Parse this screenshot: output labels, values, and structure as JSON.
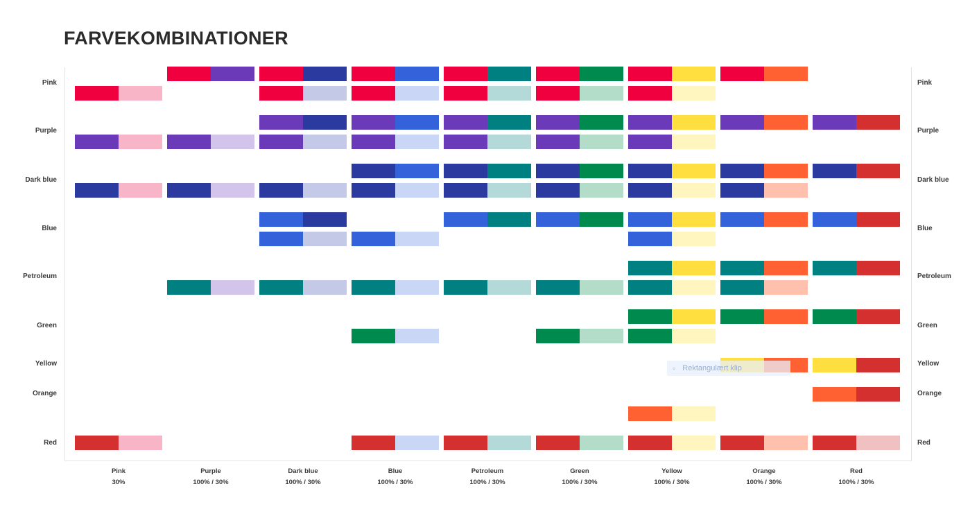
{
  "title": "FARVEKOMBINATIONER",
  "palette": {
    "pink": "#f0003f",
    "purple": "#6b3ab8",
    "darkblue": "#2b3a9e",
    "blue": "#3462db",
    "petroleum": "#008080",
    "green": "#008a4e",
    "yellow": "#ffdf3f",
    "orange": "#ff6133",
    "red": "#d3302f",
    "pink30": "#f8b5c8",
    "purple30": "#d3c4eb",
    "darkblue30": "#c4c9e8",
    "blue30": "#cad6f5",
    "petroleum30": "#b3d9d9",
    "green30": "#b3dcc9",
    "yellow30": "#fff5bf",
    "orange30": "#ffc1ad",
    "red30": "#f1c1c1"
  },
  "row_labels": [
    "Pink",
    "Purple",
    "Dark blue",
    "Blue",
    "Petroleum",
    "Green",
    "Yellow",
    "Orange",
    "Red"
  ],
  "columns": [
    {
      "name": "Pink",
      "sub": "30%"
    },
    {
      "name": "Purple",
      "sub": "100% / 30%"
    },
    {
      "name": "Dark blue",
      "sub": "100% / 30%"
    },
    {
      "name": "Blue",
      "sub": "100% / 30%"
    },
    {
      "name": "Petroleum",
      "sub": "100% / 30%"
    },
    {
      "name": "Green",
      "sub": "100% / 30%"
    },
    {
      "name": "Yellow",
      "sub": "100% / 30%"
    },
    {
      "name": "Orange",
      "sub": "100% / 30%"
    },
    {
      "name": "Red",
      "sub": "100% / 30%"
    }
  ],
  "swatch_rows": [
    {
      "row": "Pink",
      "level": "top",
      "cells": [
        {
          "col": 1,
          "colors": [
            "pink",
            "purple"
          ]
        },
        {
          "col": 2,
          "colors": [
            "pink",
            "darkblue"
          ]
        },
        {
          "col": 3,
          "colors": [
            "pink",
            "blue"
          ]
        },
        {
          "col": 4,
          "colors": [
            "pink",
            "petroleum"
          ]
        },
        {
          "col": 5,
          "colors": [
            "pink",
            "green"
          ]
        },
        {
          "col": 6,
          "colors": [
            "pink",
            "yellow"
          ]
        },
        {
          "col": 7,
          "colors": [
            "pink",
            "orange"
          ]
        }
      ]
    },
    {
      "row": "Pink",
      "level": "bottom",
      "cells": [
        {
          "col": 0,
          "colors": [
            "pink",
            "pink30"
          ]
        },
        {
          "col": 2,
          "colors": [
            "pink",
            "darkblue30"
          ]
        },
        {
          "col": 3,
          "colors": [
            "pink",
            "blue30"
          ]
        },
        {
          "col": 4,
          "colors": [
            "pink",
            "petroleum30"
          ]
        },
        {
          "col": 5,
          "colors": [
            "pink",
            "green30"
          ]
        },
        {
          "col": 6,
          "colors": [
            "pink",
            "yellow30"
          ]
        }
      ]
    },
    {
      "row": "Purple",
      "level": "top",
      "cells": [
        {
          "col": 2,
          "colors": [
            "purple",
            "darkblue"
          ]
        },
        {
          "col": 3,
          "colors": [
            "purple",
            "blue"
          ]
        },
        {
          "col": 4,
          "colors": [
            "purple",
            "petroleum"
          ]
        },
        {
          "col": 5,
          "colors": [
            "purple",
            "green"
          ]
        },
        {
          "col": 6,
          "colors": [
            "purple",
            "yellow"
          ]
        },
        {
          "col": 7,
          "colors": [
            "purple",
            "orange"
          ]
        },
        {
          "col": 8,
          "colors": [
            "purple",
            "red"
          ]
        }
      ]
    },
    {
      "row": "Purple",
      "level": "bottom",
      "cells": [
        {
          "col": 0,
          "colors": [
            "purple",
            "pink30"
          ]
        },
        {
          "col": 1,
          "colors": [
            "purple",
            "purple30"
          ]
        },
        {
          "col": 2,
          "colors": [
            "purple",
            "darkblue30"
          ]
        },
        {
          "col": 3,
          "colors": [
            "purple",
            "blue30"
          ]
        },
        {
          "col": 4,
          "colors": [
            "purple",
            "petroleum30"
          ]
        },
        {
          "col": 5,
          "colors": [
            "purple",
            "green30"
          ]
        },
        {
          "col": 6,
          "colors": [
            "purple",
            "yellow30"
          ]
        }
      ]
    },
    {
      "row": "Dark blue",
      "level": "top",
      "cells": [
        {
          "col": 3,
          "colors": [
            "darkblue",
            "blue"
          ]
        },
        {
          "col": 4,
          "colors": [
            "darkblue",
            "petroleum"
          ]
        },
        {
          "col": 5,
          "colors": [
            "darkblue",
            "green"
          ]
        },
        {
          "col": 6,
          "colors": [
            "darkblue",
            "yellow"
          ]
        },
        {
          "col": 7,
          "colors": [
            "darkblue",
            "orange"
          ]
        },
        {
          "col": 8,
          "colors": [
            "darkblue",
            "red"
          ]
        }
      ]
    },
    {
      "row": "Dark blue",
      "level": "bottom",
      "cells": [
        {
          "col": 0,
          "colors": [
            "darkblue",
            "pink30"
          ]
        },
        {
          "col": 1,
          "colors": [
            "darkblue",
            "purple30"
          ]
        },
        {
          "col": 2,
          "colors": [
            "darkblue",
            "darkblue30"
          ]
        },
        {
          "col": 3,
          "colors": [
            "darkblue",
            "blue30"
          ]
        },
        {
          "col": 4,
          "colors": [
            "darkblue",
            "petroleum30"
          ]
        },
        {
          "col": 5,
          "colors": [
            "darkblue",
            "green30"
          ]
        },
        {
          "col": 6,
          "colors": [
            "darkblue",
            "yellow30"
          ]
        },
        {
          "col": 7,
          "colors": [
            "darkblue",
            "orange30"
          ]
        }
      ]
    },
    {
      "row": "Blue",
      "level": "top",
      "cells": [
        {
          "col": 2,
          "colors": [
            "blue",
            "darkblue"
          ]
        },
        {
          "col": 4,
          "colors": [
            "blue",
            "petroleum"
          ]
        },
        {
          "col": 5,
          "colors": [
            "blue",
            "green"
          ]
        },
        {
          "col": 6,
          "colors": [
            "blue",
            "yellow"
          ]
        },
        {
          "col": 7,
          "colors": [
            "blue",
            "orange"
          ]
        },
        {
          "col": 8,
          "colors": [
            "blue",
            "red"
          ]
        }
      ]
    },
    {
      "row": "Blue",
      "level": "bottom",
      "cells": [
        {
          "col": 2,
          "colors": [
            "blue",
            "darkblue30"
          ]
        },
        {
          "col": 3,
          "colors": [
            "blue",
            "blue30"
          ]
        },
        {
          "col": 6,
          "colors": [
            "blue",
            "yellow30"
          ]
        }
      ]
    },
    {
      "row": "Petroleum",
      "level": "top",
      "cells": [
        {
          "col": 6,
          "colors": [
            "petroleum",
            "yellow"
          ]
        },
        {
          "col": 7,
          "colors": [
            "petroleum",
            "orange"
          ]
        },
        {
          "col": 8,
          "colors": [
            "petroleum",
            "red"
          ]
        }
      ]
    },
    {
      "row": "Petroleum",
      "level": "bottom",
      "cells": [
        {
          "col": 1,
          "colors": [
            "petroleum",
            "purple30"
          ]
        },
        {
          "col": 2,
          "colors": [
            "petroleum",
            "darkblue30"
          ]
        },
        {
          "col": 3,
          "colors": [
            "petroleum",
            "blue30"
          ]
        },
        {
          "col": 4,
          "colors": [
            "petroleum",
            "petroleum30"
          ]
        },
        {
          "col": 5,
          "colors": [
            "petroleum",
            "green30"
          ]
        },
        {
          "col": 6,
          "colors": [
            "petroleum",
            "yellow30"
          ]
        },
        {
          "col": 7,
          "colors": [
            "petroleum",
            "orange30"
          ]
        }
      ]
    },
    {
      "row": "Green",
      "level": "top",
      "cells": [
        {
          "col": 6,
          "colors": [
            "green",
            "yellow"
          ]
        },
        {
          "col": 7,
          "colors": [
            "green",
            "orange"
          ]
        },
        {
          "col": 8,
          "colors": [
            "green",
            "red"
          ]
        }
      ]
    },
    {
      "row": "Green",
      "level": "bottom",
      "cells": [
        {
          "col": 3,
          "colors": [
            "green",
            "blue30"
          ]
        },
        {
          "col": 5,
          "colors": [
            "green",
            "green30"
          ]
        },
        {
          "col": 6,
          "colors": [
            "green",
            "yellow30"
          ]
        }
      ]
    },
    {
      "row": "Yellow",
      "level": "top",
      "cells": [
        {
          "col": 7,
          "colors": [
            "yellow",
            "orange"
          ]
        },
        {
          "col": 8,
          "colors": [
            "yellow",
            "red"
          ]
        }
      ]
    },
    {
      "row": "Orange",
      "level": "top",
      "cells": [
        {
          "col": 8,
          "colors": [
            "orange",
            "red"
          ]
        }
      ]
    },
    {
      "row": "Orange",
      "level": "bottom",
      "cells": [
        {
          "col": 6,
          "colors": [
            "orange",
            "yellow30"
          ]
        }
      ]
    },
    {
      "row": "Red",
      "level": "top",
      "cells": [
        {
          "col": 0,
          "colors": [
            "red",
            "pink30"
          ]
        },
        {
          "col": 3,
          "colors": [
            "red",
            "blue30"
          ]
        },
        {
          "col": 4,
          "colors": [
            "red",
            "petroleum30"
          ]
        },
        {
          "col": 5,
          "colors": [
            "red",
            "green30"
          ]
        },
        {
          "col": 6,
          "colors": [
            "red",
            "yellow30"
          ]
        },
        {
          "col": 7,
          "colors": [
            "red",
            "orange30"
          ]
        },
        {
          "col": 8,
          "colors": [
            "red",
            "red30"
          ]
        }
      ]
    }
  ],
  "overlay": {
    "icon": "snip-icon",
    "label": "Rektangulært klip"
  }
}
